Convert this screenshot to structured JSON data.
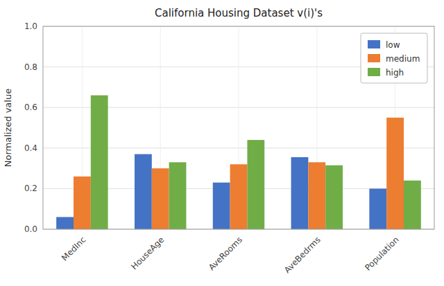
{
  "chart_data": {
    "type": "bar",
    "title": "California Housing Dataset v(i)'s",
    "y_label": "Normalized value",
    "categories": [
      "MedInc",
      "HouseAge",
      "AveRooms",
      "AveBedrms",
      "Population"
    ],
    "series": [
      {
        "name": "low",
        "color": "#4472c4",
        "values": [
          0.06,
          0.37,
          0.23,
          0.355,
          0.2
        ]
      },
      {
        "name": "medium",
        "color": "#ed7d31",
        "values": [
          0.26,
          0.3,
          0.32,
          0.33,
          0.55
        ]
      },
      {
        "name": "high",
        "color": "#70ad47",
        "values": [
          0.66,
          0.33,
          0.44,
          0.315,
          0.24
        ]
      }
    ],
    "ylim": [
      0.0,
      1.0
    ],
    "yticks": [
      {
        "value": 0.0,
        "label": "0.0"
      },
      0.2,
      0.4,
      0.6,
      0.8,
      {
        "value": 1.0,
        "label": "1.0"
      }
    ],
    "grid": true,
    "legend": "upper right"
  }
}
